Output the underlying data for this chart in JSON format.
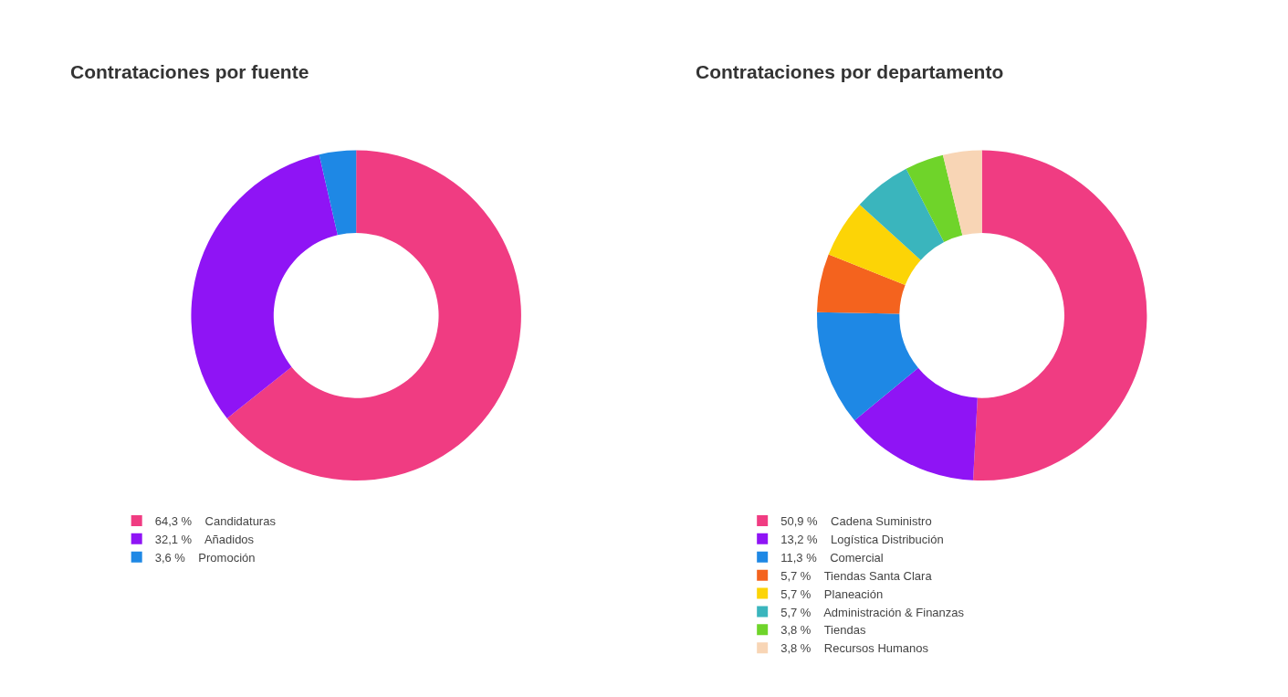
{
  "chart_data": [
    {
      "type": "donut",
      "title": "Contrataciones por fuente",
      "categories": [
        "Candidaturas",
        "Añadidos",
        "Promoción"
      ],
      "values": [
        64.3,
        32.1,
        3.6
      ],
      "value_labels": [
        "64,3 %",
        "32,1 %",
        "3,6 %"
      ],
      "colors": [
        "#f03c82",
        "#8f14f5",
        "#1e88e5"
      ],
      "legend": "bottom"
    },
    {
      "type": "donut",
      "title": "Contrataciones por departamento",
      "categories": [
        "Cadena Suministro",
        "Logística Distribución",
        "Comercial",
        "Tiendas Santa Clara",
        "Planeación",
        "Administración & Finanzas",
        "Tiendas",
        "Recursos Humanos"
      ],
      "values": [
        50.9,
        13.2,
        11.3,
        5.7,
        5.7,
        5.7,
        3.8,
        3.8
      ],
      "value_labels": [
        "50,9 %",
        "13,2 %",
        "11,3 %",
        "5,7 %",
        "5,7 %",
        "5,7 %",
        "3,8 %",
        "3,8 %"
      ],
      "colors": [
        "#f03c82",
        "#8f14f5",
        "#1e88e5",
        "#f4631e",
        "#fcd406",
        "#3ab5bd",
        "#6fd42a",
        "#f8d5b5"
      ],
      "legend": "bottom"
    }
  ]
}
